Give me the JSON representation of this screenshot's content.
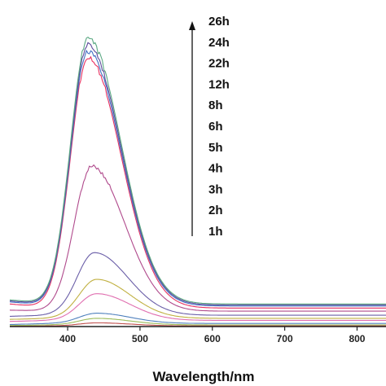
{
  "chart_data": {
    "type": "line",
    "title": "",
    "xlabel": "Wavelength/nm",
    "ylabel": "",
    "xlim": [
      320,
      840
    ],
    "ylim": [
      0,
      100
    ],
    "xticks": [
      400,
      500,
      600,
      700,
      800
    ],
    "grid": false,
    "legend_placement": "top-right",
    "legend_labels_top_to_bottom": [
      "26h",
      "24h",
      "22h",
      "12h",
      "8h",
      "6h",
      "5h",
      "4h",
      "3h",
      "2h",
      "1h"
    ],
    "legend_arrow": "up",
    "series": [
      {
        "name": "1h",
        "color": "#c0504d",
        "curve": {
          "start": 0.2,
          "peak": 1.8,
          "peak_x": 440,
          "plateau": 0.3
        },
        "x": [
          320,
          440,
          840
        ],
        "y": [
          0.2,
          1.8,
          0.3
        ]
      },
      {
        "name": "2h",
        "color": "#4f81bd",
        "curve": {
          "start": 1.0,
          "peak": 6.5,
          "peak_x": 440,
          "plateau": 1.5
        },
        "x": [
          320,
          440,
          840
        ],
        "y": [
          1.0,
          6.5,
          1.5
        ]
      },
      {
        "name": "3h",
        "color": "#9bbb59",
        "curve": {
          "start": 0.5,
          "peak": 4.0,
          "peak_x": 440,
          "plateau": 0.8
        },
        "x": [
          320,
          440,
          840
        ],
        "y": [
          0.5,
          4.0,
          0.8
        ]
      },
      {
        "name": "4h",
        "color": "#e06fb0",
        "curve": {
          "start": 2.5,
          "peak": 16.0,
          "peak_x": 440,
          "plateau": 3.0
        },
        "x": [
          320,
          440,
          840
        ],
        "y": [
          2.5,
          16.0,
          3.0
        ]
      },
      {
        "name": "5h",
        "color": "#c0b040",
        "curve": {
          "start": 3.5,
          "peak": 23.0,
          "peak_x": 440,
          "plateau": 4.0
        },
        "x": [
          320,
          440,
          840
        ],
        "y": [
          3.5,
          23.0,
          4.0
        ]
      },
      {
        "name": "6h",
        "color": "#6b5fa8",
        "curve": {
          "start": 5.0,
          "peak": 36.0,
          "peak_x": 437,
          "plateau": 5.5
        },
        "x": [
          320,
          437,
          840
        ],
        "y": [
          5.0,
          36.0,
          5.5
        ]
      },
      {
        "name": "8h",
        "color": "#b04a8c",
        "curve": {
          "start": 8.0,
          "peak": 78.0,
          "peak_x": 433,
          "plateau": 7.5
        },
        "x": [
          320,
          433,
          840
        ],
        "y": [
          8.0,
          78.0,
          7.5
        ]
      },
      {
        "name": "12h",
        "color": "#e83060",
        "curve": {
          "start": 11.0,
          "peak": 131.0,
          "peak_x": 428,
          "plateau": 9.0
        },
        "x": [
          320,
          428,
          840
        ],
        "y": [
          11.0,
          131.0,
          9.0
        ]
      },
      {
        "name": "22h",
        "color": "#4472c4",
        "curve": {
          "start": 12.0,
          "peak": 134.0,
          "peak_x": 428,
          "plateau": 10.0
        },
        "x": [
          320,
          428,
          840
        ],
        "y": [
          12.0,
          134.0,
          10.0
        ]
      },
      {
        "name": "24h",
        "color": "#5e4b9c",
        "curve": {
          "start": 12.5,
          "peak": 137.0,
          "peak_x": 428,
          "plateau": 10.5
        },
        "x": [
          320,
          428,
          840
        ],
        "y": [
          12.5,
          137.0,
          10.5
        ]
      },
      {
        "name": "26h",
        "color": "#5aa882",
        "curve": {
          "start": 13.0,
          "peak": 140.0,
          "peak_x": 428,
          "plateau": 11.0
        },
        "x": [
          320,
          428,
          840
        ],
        "y": [
          13.0,
          140.0,
          11.0
        ]
      }
    ]
  }
}
